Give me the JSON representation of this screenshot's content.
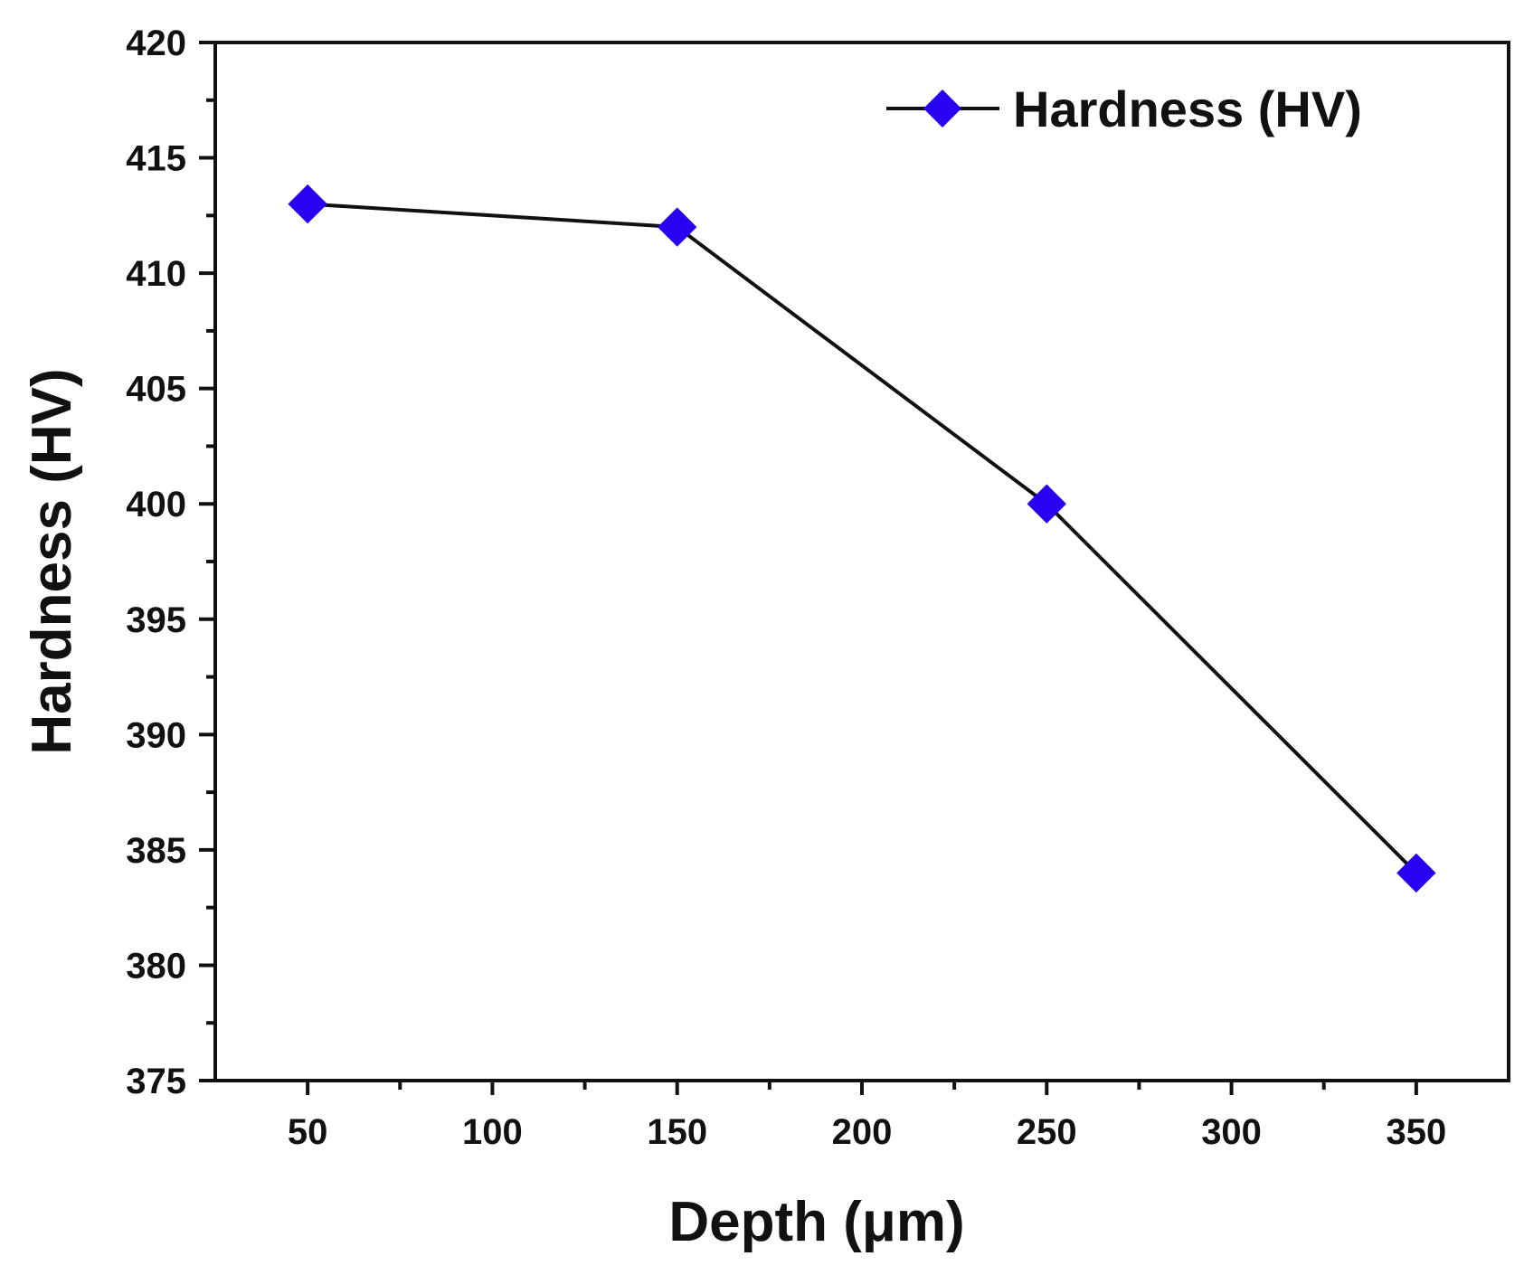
{
  "chart_data": {
    "type": "line",
    "title": "",
    "xlabel": "Depth (μm)",
    "ylabel": "Hardness (HV)",
    "xlim": [
      25,
      375
    ],
    "ylim": [
      375,
      420
    ],
    "xticks": [
      50,
      100,
      150,
      200,
      250,
      300,
      350
    ],
    "xticks_minor": [
      75,
      125,
      175,
      225,
      275,
      325
    ],
    "yticks": [
      375,
      380,
      385,
      390,
      395,
      400,
      405,
      410,
      415,
      420
    ],
    "yticks_minor": [
      377.5,
      382.5,
      387.5,
      392.5,
      397.5,
      402.5,
      407.5,
      412.5,
      417.5
    ],
    "legend_position": "top-right",
    "series": [
      {
        "name": "Hardness (HV)",
        "marker": "diamond",
        "line_color": "#111111",
        "marker_color": "#2a00f0",
        "x": [
          50,
          150,
          250,
          350
        ],
        "y": [
          413,
          412,
          400,
          384
        ]
      }
    ]
  }
}
